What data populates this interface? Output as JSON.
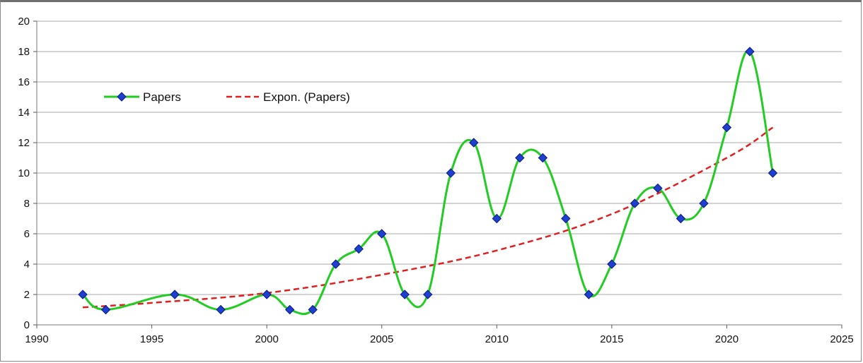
{
  "chart_data": {
    "type": "line",
    "title": "",
    "xlabel": "",
    "ylabel": "",
    "xlim": [
      1990,
      2025
    ],
    "ylim": [
      0,
      20
    ],
    "x_ticks": [
      1990,
      1995,
      2000,
      2005,
      2010,
      2015,
      2020,
      2025
    ],
    "y_ticks": [
      0,
      2,
      4,
      6,
      8,
      10,
      12,
      14,
      16,
      18,
      20
    ],
    "grid": "horizontal",
    "legend_placement": "top-left",
    "series": [
      {
        "name": "Papers",
        "style": "smooth line with diamond markers",
        "color": "#22cc22",
        "marker_color": "#1f3fd0",
        "x": [
          1992,
          1993,
          1996,
          1998,
          2000,
          2001,
          2002,
          2003,
          2004,
          2005,
          2006,
          2007,
          2008,
          2009,
          2010,
          2011,
          2012,
          2013,
          2014,
          2015,
          2016,
          2017,
          2018,
          2019,
          2020,
          2021,
          2022
        ],
        "y": [
          2,
          1,
          2,
          1,
          2,
          1,
          1,
          4,
          5,
          6,
          2,
          2,
          10,
          12,
          7,
          11,
          11,
          7,
          2,
          4,
          8,
          9,
          7,
          8,
          13,
          18,
          10
        ]
      },
      {
        "name": "Expon. (Papers)",
        "style": "dashed exponential trendline",
        "color": "#e02020",
        "x": [
          1992,
          1995,
          2000,
          2005,
          2010,
          2015,
          2020,
          2022
        ],
        "y": [
          1.15,
          1.45,
          2.1,
          3.3,
          4.9,
          7.3,
          11.0,
          13.0
        ]
      }
    ]
  }
}
